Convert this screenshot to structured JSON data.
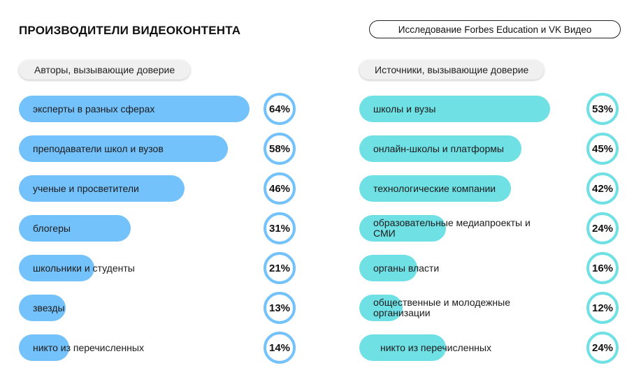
{
  "title": "ПРОИЗВОДИТЕЛИ ВИДЕОКОНТЕНТА",
  "source": "Исследование Forbes Education и VK Видео",
  "colors": {
    "left_bar": "#74c2fb",
    "right_bar": "#6fe0e4"
  },
  "chart_data": [
    {
      "type": "bar",
      "orientation": "horizontal",
      "title": "Авторы, вызывающие доверие",
      "unit": "%",
      "categories": [
        "эксперты в разных сферах",
        "преподаватели школ и вузов",
        "ученые и просветители",
        "блогеры",
        "школьники и студенты",
        "звезды",
        "никто из перечисленных"
      ],
      "values": [
        64,
        58,
        46,
        31,
        21,
        13,
        14
      ],
      "value_labels": [
        "64%",
        "58%",
        "46%",
        "31%",
        "21%",
        "13%",
        "14%"
      ],
      "xlim": [
        0,
        64
      ]
    },
    {
      "type": "bar",
      "orientation": "horizontal",
      "title": "Источники, вызывающие доверие",
      "unit": "%",
      "categories": [
        "школы и вузы",
        "онлайн-школы и платформы",
        "технологические компании",
        "образовательные медиапроекты и СМИ",
        "органы власти",
        "общественные и молодежные организации",
        "никто из перечисленных"
      ],
      "values": [
        53,
        45,
        42,
        24,
        16,
        12,
        24
      ],
      "value_labels": [
        "53%",
        "45%",
        "42%",
        "24%",
        "16%",
        "12%",
        "24%"
      ],
      "xlim": [
        0,
        64
      ]
    }
  ]
}
